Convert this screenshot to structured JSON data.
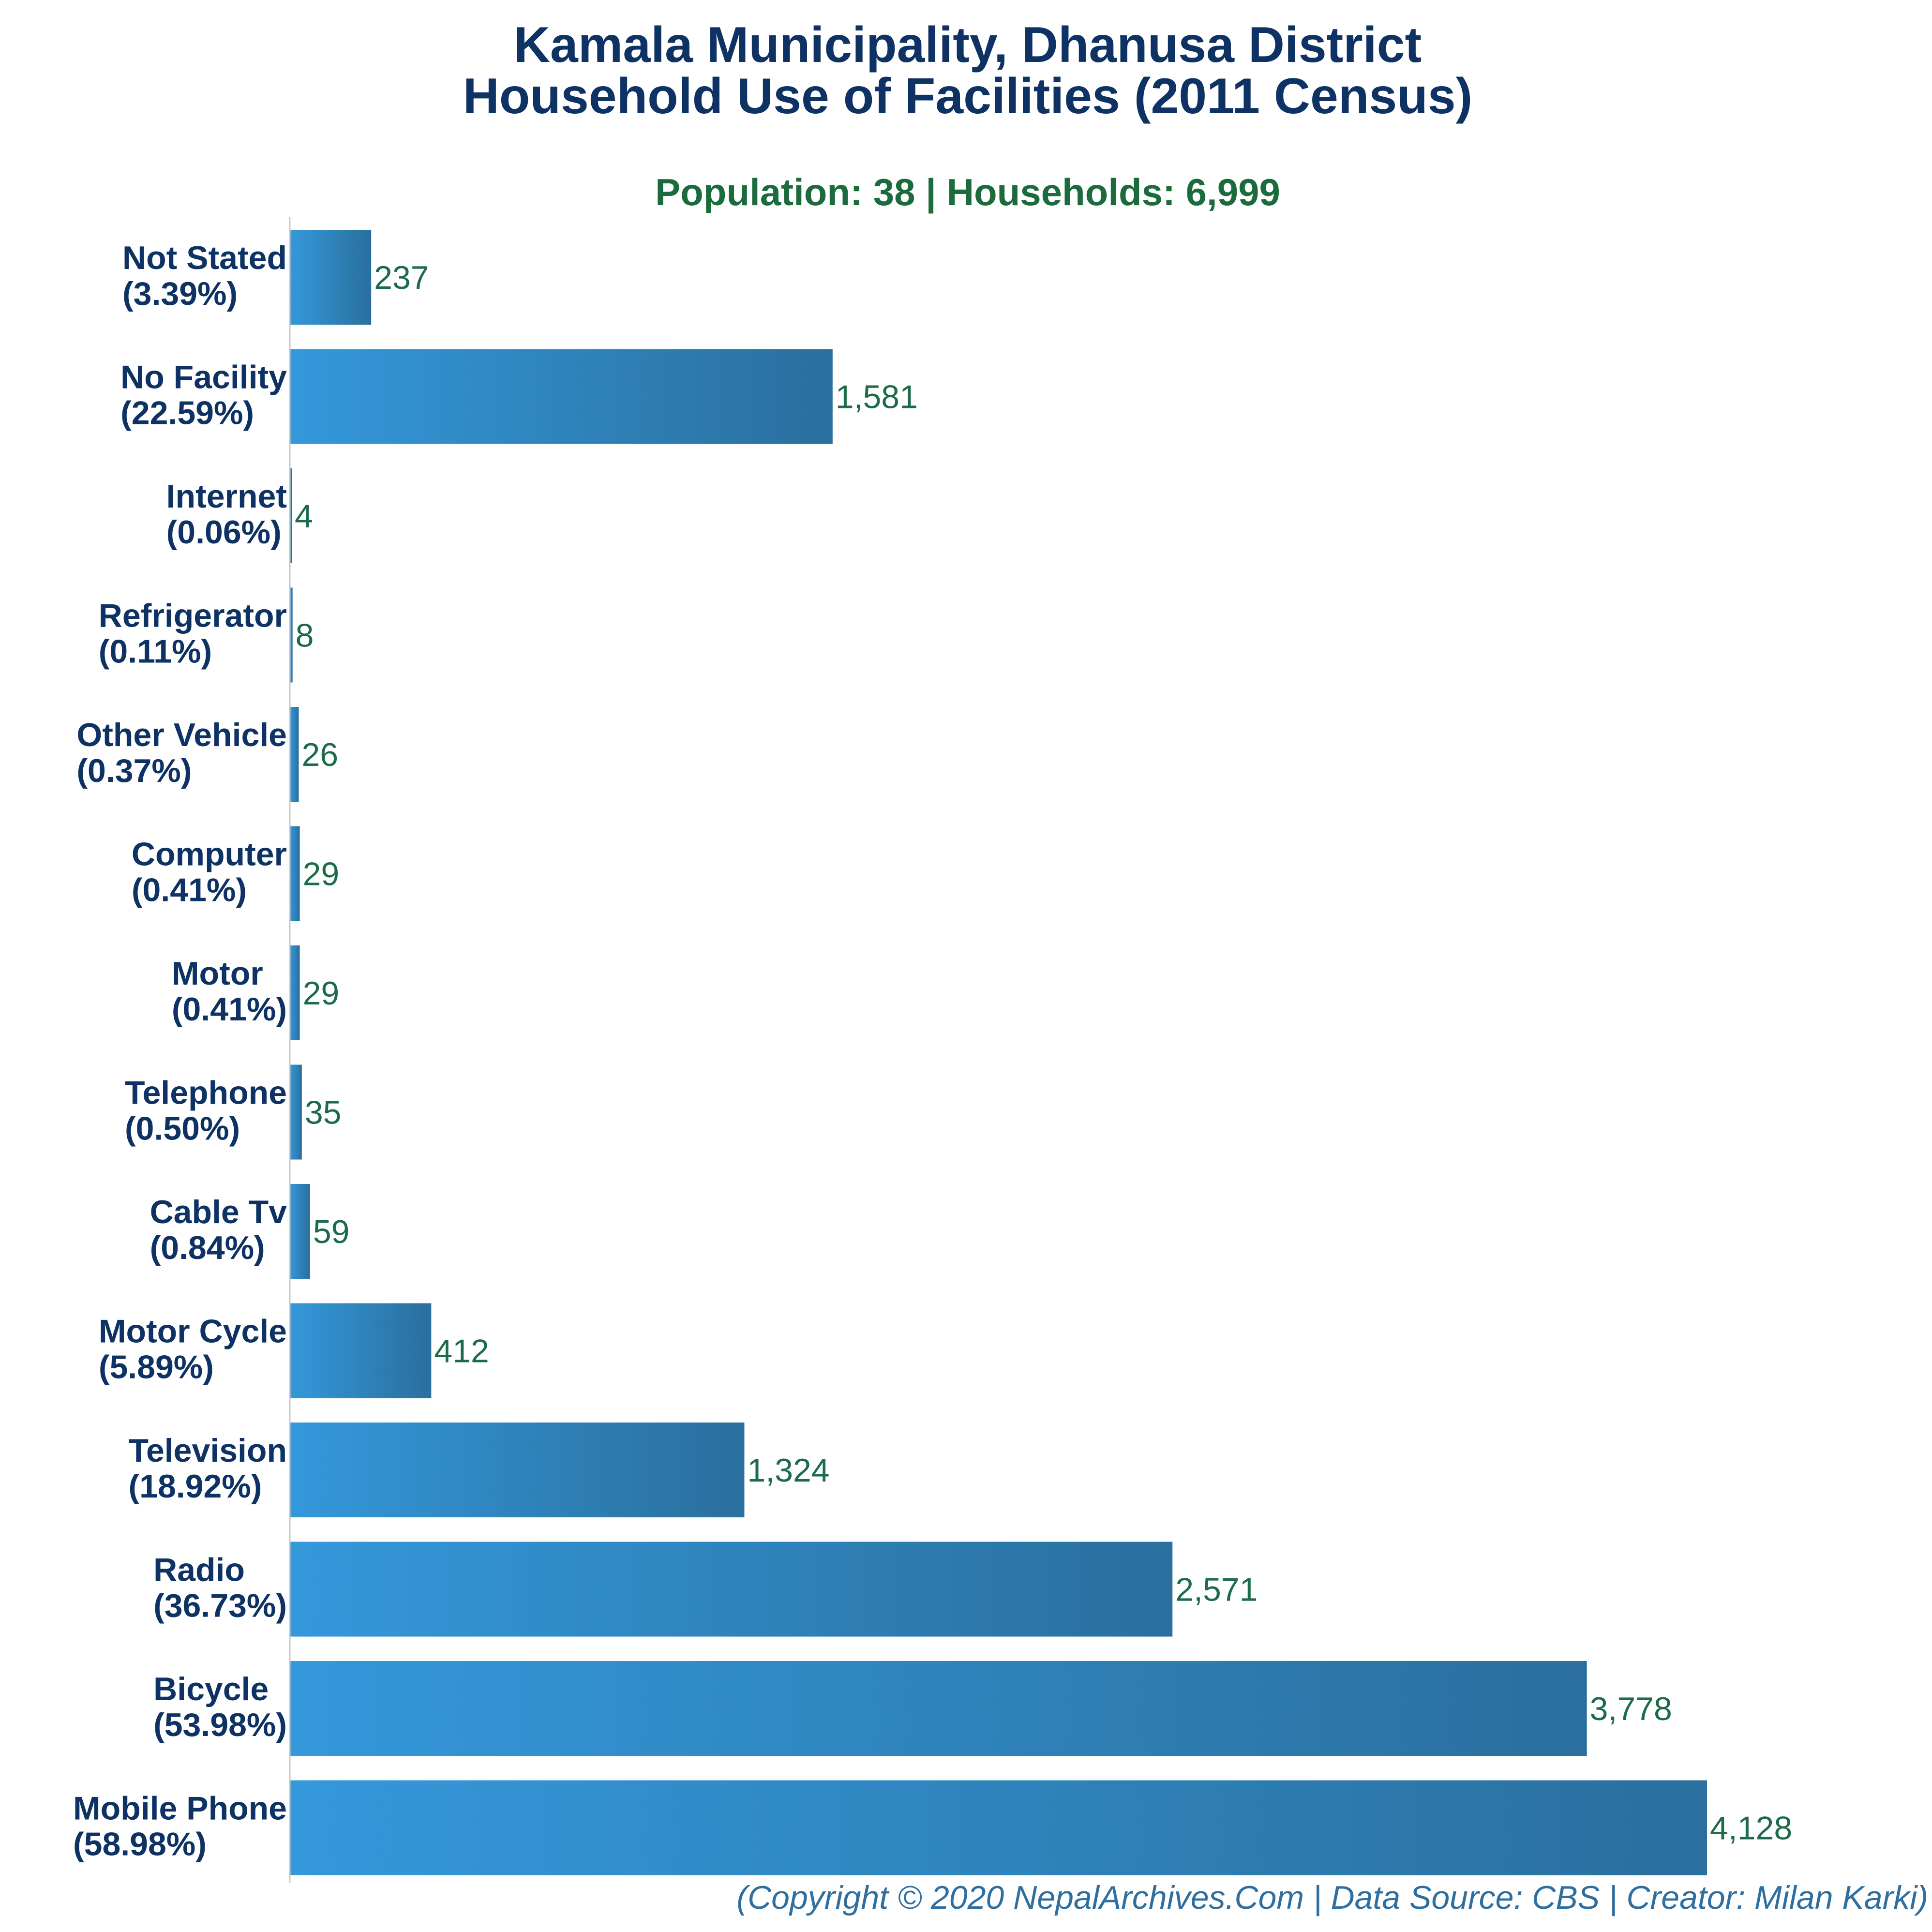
{
  "title_line1": "Kamala Municipality, Dhanusa District",
  "title_line2": "Household Use of Facilities (2011 Census)",
  "subtitle": "Population: 38 | Households: 6,999",
  "footer": "(Copyright © 2020 NepalArchives.Com | Data Source: CBS | Creator: Milan Karki)",
  "colors": {
    "bar_start": "#3498db",
    "bar_end": "#2a6f9e",
    "title": "#0d3263",
    "subtitle": "#1c6b3c",
    "value_label": "#1c6b4a",
    "axis": "#c8c8c8"
  },
  "chart_data": {
    "type": "bar",
    "orientation": "horizontal",
    "title": "Kamala Municipality, Dhanusa District Household Use of Facilities (2011 Census)",
    "subtitle": "Population: 38 | Households: 6,999",
    "xlim": [
      0,
      4500
    ],
    "grid": false,
    "legend": "none",
    "categories": [
      {
        "name": "Not Stated",
        "pct": "(3.39%)",
        "value": 237,
        "value_label": "237"
      },
      {
        "name": "No Facility",
        "pct": "(22.59%)",
        "value": 1581,
        "value_label": "1,581"
      },
      {
        "name": "Internet",
        "pct": "(0.06%)",
        "value": 4,
        "value_label": "4"
      },
      {
        "name": "Refrigerator",
        "pct": "(0.11%)",
        "value": 8,
        "value_label": "8"
      },
      {
        "name": "Other Vehicle",
        "pct": "(0.37%)",
        "value": 26,
        "value_label": "26"
      },
      {
        "name": "Computer",
        "pct": "(0.41%)",
        "value": 29,
        "value_label": "29"
      },
      {
        "name": "Motor",
        "pct": "(0.41%)",
        "value": 29,
        "value_label": "29"
      },
      {
        "name": "Telephone",
        "pct": "(0.50%)",
        "value": 35,
        "value_label": "35"
      },
      {
        "name": "Cable Tv",
        "pct": "(0.84%)",
        "value": 59,
        "value_label": "59"
      },
      {
        "name": "Motor Cycle",
        "pct": "(5.89%)",
        "value": 412,
        "value_label": "412"
      },
      {
        "name": "Television",
        "pct": "(18.92%)",
        "value": 1324,
        "value_label": "1,324"
      },
      {
        "name": "Radio",
        "pct": "(36.73%)",
        "value": 2571,
        "value_label": "2,571"
      },
      {
        "name": "Bicycle",
        "pct": "(53.98%)",
        "value": 3778,
        "value_label": "3,778"
      },
      {
        "name": "Mobile Phone",
        "pct": "(58.98%)",
        "value": 4128,
        "value_label": "4,128"
      }
    ]
  }
}
